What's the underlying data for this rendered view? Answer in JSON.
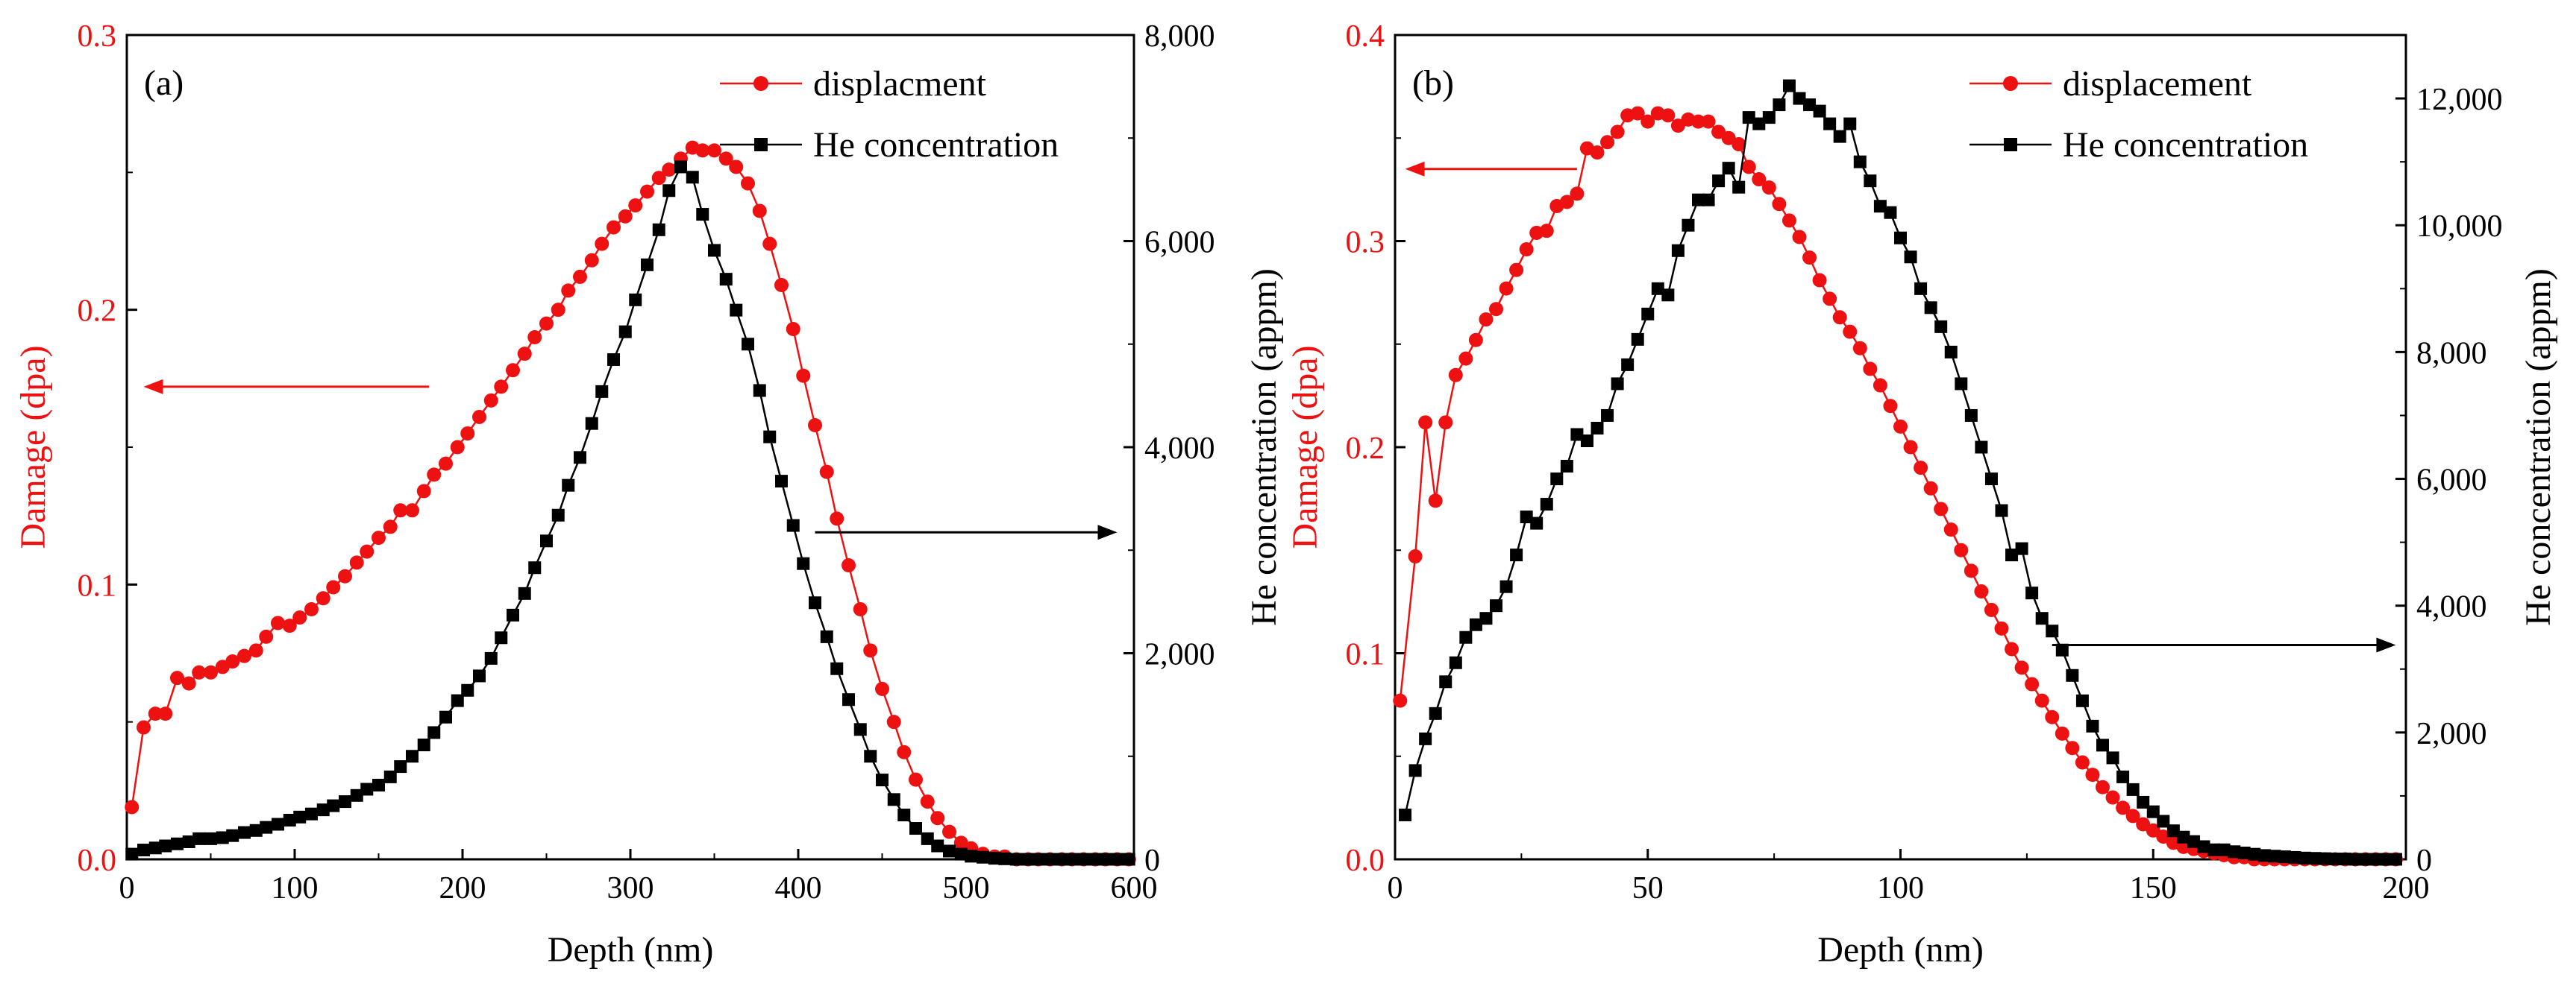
{
  "colors": {
    "damage": "#ee1111",
    "helium": "#000000",
    "axis": "#000000"
  },
  "chart_data": [
    {
      "type": "line",
      "panel_label": "(a)",
      "xlabel": "Depth (nm)",
      "ylabel_left": "Damage (dpa)",
      "ylabel_right": "He concentration (appm)",
      "xlim": [
        0,
        600
      ],
      "ylim_left": [
        0,
        0.3
      ],
      "ylim_right": [
        0,
        8000
      ],
      "x_ticks": [
        0,
        100,
        200,
        300,
        400,
        500,
        600
      ],
      "x_tick_labels": [
        "0",
        "100",
        "200",
        "300",
        "400",
        "500",
        "600"
      ],
      "y_left_ticks": [
        0,
        0.1,
        0.2,
        0.3
      ],
      "y_left_tick_labels": [
        "0.0",
        "0.1",
        "0.2",
        "0.3"
      ],
      "y_right_ticks": [
        0,
        2000,
        4000,
        6000,
        8000
      ],
      "y_right_tick_labels": [
        "0",
        "2,000",
        "4,000",
        "6,000",
        "8,000"
      ],
      "legend": [
        "displacment",
        "He concentration"
      ],
      "arrows": [
        {
          "series": "displacment",
          "direction": "left",
          "x_from": 180,
          "x_to": 10,
          "y": 0.172
        },
        {
          "series": "He concentration",
          "direction": "right",
          "x_from": 410,
          "x_to": 590,
          "y": 0.119
        }
      ],
      "series": [
        {
          "name": "displacment",
          "axis": "left",
          "marker": "circle",
          "x": [
            3,
            10,
            17,
            23,
            30,
            37,
            43,
            50,
            57,
            63,
            70,
            77,
            83,
            90,
            97,
            103,
            110,
            117,
            123,
            130,
            137,
            143,
            150,
            157,
            163,
            170,
            177,
            183,
            190,
            197,
            203,
            210,
            217,
            223,
            230,
            237,
            243,
            250,
            257,
            263,
            270,
            277,
            283,
            290,
            297,
            303,
            310,
            317,
            323,
            330,
            337,
            343,
            350,
            357,
            363,
            370,
            377,
            383,
            390,
            397,
            403,
            410,
            417,
            423,
            430,
            437,
            443,
            450,
            457,
            463,
            470,
            477,
            483,
            490,
            497,
            503,
            510,
            517,
            523,
            530,
            537,
            543,
            550,
            557,
            563,
            570,
            577,
            583,
            590,
            597
          ],
          "values": [
            0.019,
            0.048,
            0.053,
            0.053,
            0.066,
            0.064,
            0.068,
            0.068,
            0.07,
            0.072,
            0.074,
            0.076,
            0.081,
            0.086,
            0.085,
            0.088,
            0.091,
            0.095,
            0.099,
            0.103,
            0.108,
            0.112,
            0.117,
            0.121,
            0.127,
            0.127,
            0.134,
            0.14,
            0.144,
            0.15,
            0.155,
            0.161,
            0.167,
            0.172,
            0.178,
            0.184,
            0.19,
            0.195,
            0.2,
            0.207,
            0.212,
            0.218,
            0.224,
            0.23,
            0.234,
            0.238,
            0.243,
            0.248,
            0.251,
            0.255,
            0.259,
            0.258,
            0.258,
            0.255,
            0.252,
            0.246,
            0.236,
            0.224,
            0.209,
            0.193,
            0.176,
            0.158,
            0.141,
            0.124,
            0.107,
            0.091,
            0.076,
            0.062,
            0.05,
            0.039,
            0.029,
            0.021,
            0.015,
            0.01,
            0.006,
            0.004,
            0.002,
            0.001,
            0.001,
            0.0,
            0.0,
            0.0,
            0.0,
            0.0,
            0.0,
            0.0,
            0.0,
            0.0,
            0.0,
            0.0
          ]
        },
        {
          "name": "He concentration",
          "axis": "right",
          "marker": "square",
          "x": [
            3,
            10,
            17,
            23,
            30,
            37,
            43,
            50,
            57,
            63,
            70,
            77,
            83,
            90,
            97,
            103,
            110,
            117,
            123,
            130,
            137,
            143,
            150,
            157,
            163,
            170,
            177,
            183,
            190,
            197,
            203,
            210,
            217,
            223,
            230,
            237,
            243,
            250,
            257,
            263,
            270,
            277,
            283,
            290,
            297,
            303,
            310,
            317,
            323,
            330,
            337,
            343,
            350,
            357,
            363,
            370,
            377,
            383,
            390,
            397,
            403,
            410,
            417,
            423,
            430,
            437,
            443,
            450,
            457,
            463,
            470,
            477,
            483,
            490,
            497,
            503,
            510,
            517,
            523,
            530,
            537,
            543,
            550,
            557,
            563,
            570,
            577,
            583,
            590,
            597
          ],
          "values": [
            50,
            90,
            110,
            130,
            150,
            170,
            200,
            200,
            210,
            230,
            260,
            280,
            310,
            340,
            380,
            410,
            440,
            480,
            520,
            560,
            620,
            680,
            720,
            800,
            900,
            1000,
            1110,
            1230,
            1380,
            1540,
            1640,
            1780,
            1950,
            2150,
            2370,
            2580,
            2830,
            3090,
            3340,
            3630,
            3900,
            4230,
            4540,
            4850,
            5120,
            5430,
            5770,
            6110,
            6490,
            6720,
            6620,
            6260,
            5910,
            5630,
            5330,
            5000,
            4550,
            4100,
            3670,
            3240,
            2870,
            2490,
            2160,
            1850,
            1550,
            1260,
            1000,
            770,
            580,
            430,
            300,
            200,
            130,
            80,
            50,
            30,
            20,
            10,
            5,
            0,
            0,
            0,
            0,
            0,
            0,
            0,
            0,
            0,
            0,
            0
          ]
        }
      ]
    },
    {
      "type": "line",
      "panel_label": "(b)",
      "xlabel": "Depth (nm)",
      "ylabel_left": "Damage (dpa)",
      "ylabel_right": "He concentration (appm)",
      "xlim": [
        0,
        200
      ],
      "ylim_left": [
        0,
        0.4
      ],
      "ylim_right": [
        0,
        13000
      ],
      "x_ticks": [
        0,
        50,
        100,
        150,
        200
      ],
      "x_tick_labels": [
        "0",
        "50",
        "100",
        "150",
        "200"
      ],
      "y_left_ticks": [
        0,
        0.1,
        0.2,
        0.3,
        0.4
      ],
      "y_left_tick_labels": [
        "0.0",
        "0.1",
        "0.2",
        "0.3",
        "0.4"
      ],
      "y_right_ticks": [
        0,
        2000,
        4000,
        6000,
        8000,
        10000,
        12000
      ],
      "y_right_tick_labels": [
        "0",
        "2,000",
        "4,000",
        "6,000",
        "8,000",
        "10,000",
        "12,000"
      ],
      "legend": [
        "displacement",
        "He concentration"
      ],
      "arrows": [
        {
          "series": "displacement",
          "direction": "left",
          "x_from": 36,
          "x_to": 2,
          "y": 0.335
        },
        {
          "series": "He concentration",
          "direction": "right",
          "x_from": 130,
          "x_to": 198,
          "y": 0.104
        }
      ],
      "series": [
        {
          "name": "displacement",
          "axis": "left",
          "marker": "circle",
          "x": [
            1,
            4,
            6,
            8,
            10,
            12,
            14,
            16,
            18,
            20,
            22,
            24,
            26,
            28,
            30,
            32,
            34,
            36,
            38,
            40,
            42,
            44,
            46,
            48,
            50,
            52,
            54,
            56,
            58,
            60,
            62,
            64,
            66,
            68,
            70,
            72,
            74,
            76,
            78,
            80,
            82,
            84,
            86,
            88,
            90,
            92,
            94,
            96,
            98,
            100,
            102,
            104,
            106,
            108,
            110,
            112,
            114,
            116,
            118,
            120,
            122,
            124,
            126,
            128,
            130,
            132,
            134,
            136,
            138,
            140,
            142,
            144,
            146,
            148,
            150,
            152,
            154,
            156,
            158,
            160,
            162,
            164,
            166,
            168,
            170,
            172,
            174,
            176,
            178,
            180,
            182,
            184,
            186,
            188,
            190,
            192,
            194,
            196,
            198
          ],
          "values": [
            0.077,
            0.147,
            0.212,
            0.174,
            0.212,
            0.235,
            0.243,
            0.252,
            0.262,
            0.267,
            0.277,
            0.286,
            0.296,
            0.304,
            0.305,
            0.317,
            0.319,
            0.323,
            0.345,
            0.343,
            0.348,
            0.353,
            0.361,
            0.362,
            0.358,
            0.362,
            0.361,
            0.356,
            0.359,
            0.358,
            0.358,
            0.353,
            0.35,
            0.347,
            0.336,
            0.33,
            0.326,
            0.318,
            0.31,
            0.302,
            0.292,
            0.281,
            0.272,
            0.263,
            0.256,
            0.248,
            0.238,
            0.23,
            0.22,
            0.21,
            0.2,
            0.19,
            0.18,
            0.17,
            0.16,
            0.15,
            0.14,
            0.13,
            0.121,
            0.112,
            0.102,
            0.093,
            0.085,
            0.077,
            0.069,
            0.061,
            0.054,
            0.047,
            0.041,
            0.035,
            0.03,
            0.025,
            0.021,
            0.017,
            0.014,
            0.011,
            0.008,
            0.006,
            0.005,
            0.004,
            0.003,
            0.002,
            0.001,
            0.001,
            0.0,
            0.0,
            0.0,
            0.0,
            0.0,
            0.0,
            0.0,
            0.0,
            0.0,
            0.0,
            0.0,
            0.0,
            0.0,
            0.0,
            0.0
          ]
        },
        {
          "name": "He concentration",
          "axis": "right",
          "marker": "square",
          "x": [
            2,
            4,
            6,
            8,
            10,
            12,
            14,
            16,
            18,
            20,
            22,
            24,
            26,
            28,
            30,
            32,
            34,
            36,
            38,
            40,
            42,
            44,
            46,
            48,
            50,
            52,
            54,
            56,
            58,
            60,
            62,
            64,
            66,
            68,
            70,
            72,
            74,
            76,
            78,
            80,
            82,
            84,
            86,
            88,
            90,
            92,
            94,
            96,
            98,
            100,
            102,
            104,
            106,
            108,
            110,
            112,
            114,
            116,
            118,
            120,
            122,
            124,
            126,
            128,
            130,
            132,
            134,
            136,
            138,
            140,
            142,
            144,
            146,
            148,
            150,
            152,
            154,
            156,
            158,
            160,
            162,
            164,
            166,
            168,
            170,
            172,
            174,
            176,
            178,
            180,
            182,
            184,
            186,
            188,
            190,
            192,
            194,
            196,
            198
          ],
          "values": [
            700,
            1400,
            1900,
            2300,
            2800,
            3100,
            3500,
            3700,
            3800,
            4000,
            4300,
            4800,
            5400,
            5300,
            5600,
            6000,
            6200,
            6700,
            6600,
            6800,
            7000,
            7500,
            7800,
            8200,
            8600,
            9000,
            8900,
            9600,
            10000,
            10400,
            10400,
            10700,
            10900,
            10600,
            11700,
            11600,
            11700,
            11900,
            12200,
            12000,
            11900,
            11800,
            11600,
            11400,
            11600,
            11000,
            10700,
            10300,
            10200,
            9800,
            9500,
            9000,
            8700,
            8400,
            8000,
            7500,
            7000,
            6500,
            6000,
            5500,
            4800,
            4900,
            4200,
            3800,
            3600,
            3300,
            2900,
            2500,
            2100,
            1800,
            1600,
            1300,
            1100,
            900,
            750,
            600,
            450,
            350,
            280,
            200,
            150,
            150,
            120,
            100,
            80,
            60,
            50,
            40,
            30,
            20,
            15,
            10,
            5,
            5,
            0,
            0,
            0,
            0,
            0
          ]
        }
      ]
    }
  ]
}
